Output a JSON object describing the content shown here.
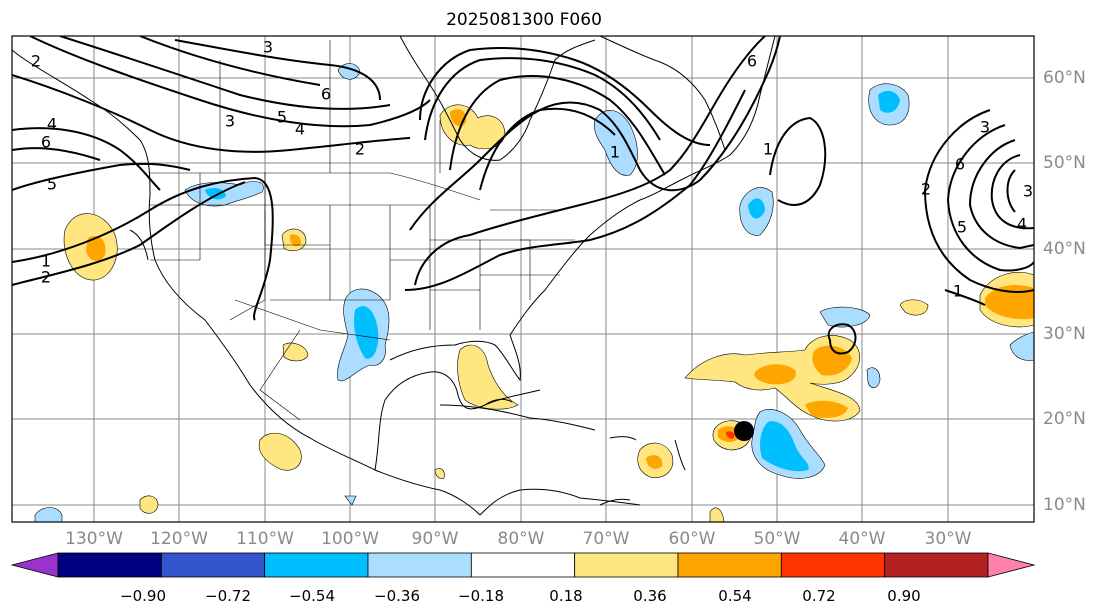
{
  "title": "2025081300 F060",
  "lat_labels": [
    "60°N",
    "50°N",
    "40°N",
    "30°N",
    "20°N",
    "10°N"
  ],
  "lon_labels": [
    "130°W",
    "120°W",
    "110°W",
    "100°W",
    "90°W",
    "80°W",
    "70°W",
    "60°W",
    "50°W",
    "40°W",
    "30°W"
  ],
  "colorbar": {
    "ticks": [
      "−0.90",
      "−0.72",
      "−0.54",
      "−0.36",
      "−0.18",
      "0.18",
      "0.36",
      "0.54",
      "0.72",
      "0.90"
    ],
    "colors": [
      "#9933cc",
      "#000080",
      "#3355cc",
      "#00bfff",
      "#aaddff",
      "#ffffff",
      "#ffe680",
      "#ffa500",
      "#ff3300",
      "#b22222",
      "#ff80aa"
    ]
  },
  "contour_labels": [
    "1",
    "2",
    "3",
    "4",
    "5",
    "6"
  ],
  "colors": {
    "frame": "#000000",
    "gridline": "#8a8a8a",
    "contour": "#000000",
    "coast": "#000000"
  }
}
